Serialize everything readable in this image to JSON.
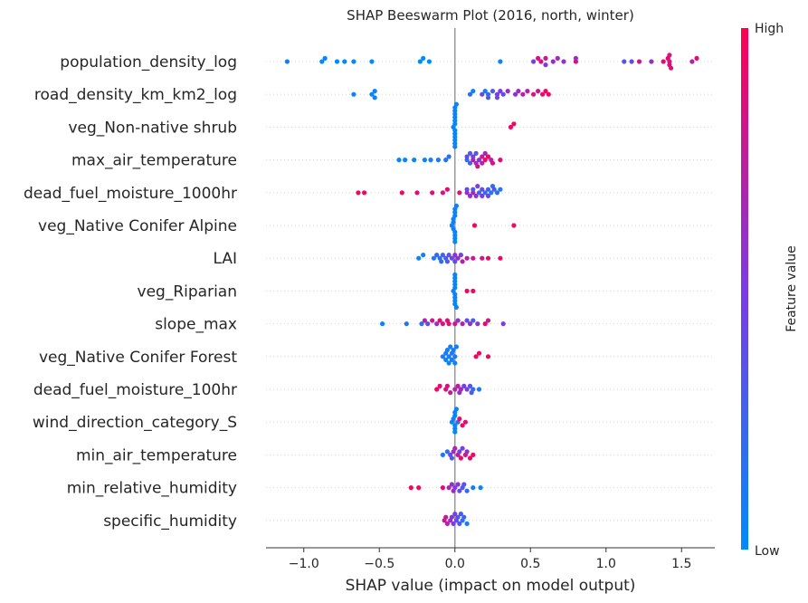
{
  "chart_data": {
    "type": "scatter",
    "subtype": "shap-beeswarm",
    "title": "SHAP Beeswarm Plot (2016, north, winter)",
    "xlabel": "SHAP value (impact on model output)",
    "xlim": [
      -1.25,
      1.72
    ],
    "x_ticks": [
      "−1.0",
      "−0.5",
      "0.0",
      "0.5",
      "1.0",
      "1.5"
    ],
    "x_tick_values": [
      -1.0,
      -0.5,
      0.0,
      0.5,
      1.0,
      1.5
    ],
    "zero_line": true,
    "colorbar": {
      "label": "Feature value",
      "high_label": "High",
      "low_label": "Low",
      "low_color": "#008bfb",
      "high_color": "#ff0052"
    },
    "features": [
      {
        "name": "population_density_log",
        "points": [
          [
            -1.11,
            0.05
          ],
          [
            -0.88,
            0.0
          ],
          [
            -0.86,
            0.05
          ],
          [
            -0.78,
            0.0
          ],
          [
            -0.73,
            0.0
          ],
          [
            -0.67,
            0.05
          ],
          [
            -0.55,
            0.0
          ],
          [
            -0.23,
            0.0
          ],
          [
            -0.21,
            0.0
          ],
          [
            -0.17,
            0.0
          ],
          [
            0.3,
            0.05
          ],
          [
            0.55,
            0.85
          ],
          [
            0.57,
            0.85
          ],
          [
            0.6,
            0.8
          ],
          [
            0.52,
            0.5
          ],
          [
            0.6,
            0.55
          ],
          [
            0.65,
            0.6
          ],
          [
            0.68,
            0.65
          ],
          [
            0.72,
            0.55
          ],
          [
            0.8,
            0.9
          ],
          [
            0.8,
            0.6
          ],
          [
            1.12,
            0.35
          ],
          [
            1.17,
            0.4
          ],
          [
            1.22,
            0.8
          ],
          [
            1.3,
            0.55
          ],
          [
            1.38,
            0.9
          ],
          [
            1.42,
            0.8
          ],
          [
            1.42,
            0.9
          ],
          [
            1.43,
            0.85
          ],
          [
            1.57,
            0.7
          ],
          [
            1.6,
            0.9
          ],
          [
            1.41,
            0.95
          ],
          [
            1.42,
            0.85
          ]
        ]
      },
      {
        "name": "road_density_km_km2_log",
        "points": [
          [
            -0.67,
            0.05
          ],
          [
            -0.55,
            0.05
          ],
          [
            -0.53,
            0.05
          ],
          [
            -0.53,
            0.05
          ],
          [
            0.1,
            0.2
          ],
          [
            0.18,
            0.45
          ],
          [
            0.2,
            0.1
          ],
          [
            0.22,
            0.2
          ],
          [
            0.28,
            0.5
          ],
          [
            0.35,
            0.6
          ],
          [
            0.45,
            0.7
          ],
          [
            0.55,
            0.8
          ],
          [
            0.58,
            0.9
          ],
          [
            0.6,
            0.95
          ],
          [
            0.12,
            0.05
          ],
          [
            0.25,
            0.3
          ],
          [
            0.3,
            0.5
          ],
          [
            0.32,
            0.4
          ],
          [
            0.4,
            0.55
          ],
          [
            0.42,
            0.65
          ],
          [
            0.48,
            0.75
          ],
          [
            0.52,
            0.85
          ],
          [
            0.62,
            0.95
          ],
          [
            0.22,
            0.3
          ],
          [
            0.28,
            0.4
          ]
        ]
      },
      {
        "name": "veg_Non-native shrub",
        "points": [
          [
            -0.01,
            0.05
          ],
          [
            0.0,
            0.05
          ],
          [
            0.0,
            0.05
          ],
          [
            0.0,
            0.05
          ],
          [
            0.0,
            0.05
          ],
          [
            0.0,
            0.05
          ],
          [
            0.0,
            0.05
          ],
          [
            0.0,
            0.05
          ],
          [
            0.0,
            0.05
          ],
          [
            0.0,
            0.05
          ],
          [
            0.0,
            0.05
          ],
          [
            0.0,
            0.05
          ],
          [
            0.0,
            0.05
          ],
          [
            0.01,
            0.05
          ],
          [
            0.37,
            0.95
          ],
          [
            0.39,
            0.95
          ]
        ]
      },
      {
        "name": "max_air_temperature",
        "points": [
          [
            -0.37,
            0.05
          ],
          [
            -0.33,
            0.05
          ],
          [
            -0.27,
            0.05
          ],
          [
            -0.2,
            0.05
          ],
          [
            -0.16,
            0.1
          ],
          [
            -0.11,
            0.1
          ],
          [
            -0.06,
            0.15
          ],
          [
            -0.04,
            0.15
          ],
          [
            0.08,
            0.2
          ],
          [
            0.1,
            0.25
          ],
          [
            0.12,
            0.75
          ],
          [
            0.15,
            0.85
          ],
          [
            0.18,
            0.8
          ],
          [
            0.2,
            0.9
          ],
          [
            0.22,
            0.95
          ],
          [
            0.25,
            0.85
          ],
          [
            0.3,
            0.9
          ],
          [
            0.14,
            0.6
          ],
          [
            0.18,
            0.7
          ],
          [
            0.08,
            0.4
          ],
          [
            0.12,
            0.5
          ],
          [
            0.16,
            0.55
          ],
          [
            0.2,
            0.65
          ],
          [
            0.24,
            0.7
          ],
          [
            0.1,
            0.3
          ],
          [
            0.14,
            0.35
          ]
        ]
      },
      {
        "name": "dead_fuel_moisture_1000hr",
        "points": [
          [
            -0.64,
            0.95
          ],
          [
            -0.6,
            0.95
          ],
          [
            -0.35,
            0.95
          ],
          [
            -0.25,
            0.9
          ],
          [
            -0.15,
            0.9
          ],
          [
            -0.08,
            0.85
          ],
          [
            -0.05,
            0.9
          ],
          [
            0.03,
            0.85
          ],
          [
            0.08,
            0.65
          ],
          [
            0.12,
            0.7
          ],
          [
            0.15,
            0.5
          ],
          [
            0.18,
            0.4
          ],
          [
            0.22,
            0.3
          ],
          [
            0.25,
            0.2
          ],
          [
            0.28,
            0.15
          ],
          [
            0.3,
            0.1
          ],
          [
            0.24,
            0.1
          ],
          [
            0.2,
            0.2
          ],
          [
            0.16,
            0.25
          ],
          [
            0.12,
            0.3
          ],
          [
            0.08,
            0.4
          ],
          [
            0.1,
            0.55
          ],
          [
            0.14,
            0.6
          ],
          [
            0.18,
            0.5
          ],
          [
            0.22,
            0.45
          ],
          [
            0.26,
            0.35
          ]
        ]
      },
      {
        "name": "veg_Native Conifer Alpine",
        "points": [
          [
            -0.02,
            0.05
          ],
          [
            -0.01,
            0.05
          ],
          [
            -0.01,
            0.05
          ],
          [
            0.0,
            0.05
          ],
          [
            0.0,
            0.05
          ],
          [
            0.0,
            0.05
          ],
          [
            0.0,
            0.05
          ],
          [
            0.0,
            0.05
          ],
          [
            0.01,
            0.05
          ],
          [
            0.0,
            0.05
          ],
          [
            -0.01,
            0.05
          ],
          [
            0.0,
            0.05
          ],
          [
            0.13,
            0.95
          ],
          [
            0.39,
            0.95
          ]
        ]
      },
      {
        "name": "LAI",
        "points": [
          [
            -0.24,
            0.05
          ],
          [
            -0.21,
            0.05
          ],
          [
            -0.14,
            0.1
          ],
          [
            -0.1,
            0.15
          ],
          [
            -0.09,
            0.2
          ],
          [
            -0.06,
            0.3
          ],
          [
            -0.04,
            0.35
          ],
          [
            -0.02,
            0.45
          ],
          [
            0.0,
            0.55
          ],
          [
            0.02,
            0.6
          ],
          [
            0.05,
            0.7
          ],
          [
            0.08,
            0.75
          ],
          [
            0.12,
            0.8
          ],
          [
            0.18,
            0.85
          ],
          [
            0.22,
            0.9
          ],
          [
            0.3,
            0.95
          ],
          [
            -0.12,
            0.2
          ],
          [
            -0.08,
            0.25
          ],
          [
            -0.05,
            0.3
          ],
          [
            0.0,
            0.4
          ],
          [
            0.04,
            0.5
          ]
        ]
      },
      {
        "name": "veg_Riparian",
        "points": [
          [
            -0.01,
            0.05
          ],
          [
            0.0,
            0.05
          ],
          [
            0.0,
            0.05
          ],
          [
            0.0,
            0.05
          ],
          [
            0.0,
            0.05
          ],
          [
            0.0,
            0.05
          ],
          [
            0.0,
            0.05
          ],
          [
            0.0,
            0.05
          ],
          [
            0.0,
            0.05
          ],
          [
            0.0,
            0.05
          ],
          [
            0.01,
            0.05
          ],
          [
            0.08,
            0.95
          ],
          [
            0.12,
            0.95
          ]
        ]
      },
      {
        "name": "slope_max",
        "points": [
          [
            -0.48,
            0.05
          ],
          [
            -0.32,
            0.1
          ],
          [
            -0.22,
            0.2
          ],
          [
            -0.18,
            0.4
          ],
          [
            -0.12,
            0.6
          ],
          [
            -0.08,
            0.85
          ],
          [
            -0.04,
            0.9
          ],
          [
            0.0,
            0.8
          ],
          [
            0.05,
            0.7
          ],
          [
            0.1,
            0.6
          ],
          [
            0.15,
            0.5
          ],
          [
            0.2,
            0.9
          ],
          [
            0.22,
            0.8
          ],
          [
            0.32,
            0.5
          ],
          [
            -0.2,
            0.7
          ],
          [
            -0.15,
            0.8
          ],
          [
            -0.1,
            0.9
          ],
          [
            -0.05,
            0.85
          ],
          [
            0.02,
            0.6
          ],
          [
            0.08,
            0.4
          ],
          [
            0.12,
            0.3
          ]
        ]
      },
      {
        "name": "veg_Native Conifer Forest",
        "points": [
          [
            -0.08,
            0.1
          ],
          [
            -0.06,
            0.1
          ],
          [
            -0.05,
            0.1
          ],
          [
            -0.04,
            0.1
          ],
          [
            -0.03,
            0.1
          ],
          [
            -0.02,
            0.1
          ],
          [
            -0.01,
            0.1
          ],
          [
            0.0,
            0.1
          ],
          [
            0.01,
            0.1
          ],
          [
            -0.06,
            0.05
          ],
          [
            -0.04,
            0.05
          ],
          [
            -0.02,
            0.05
          ],
          [
            0.0,
            0.05
          ],
          [
            0.14,
            0.95
          ],
          [
            0.16,
            0.95
          ],
          [
            0.22,
            0.95
          ]
        ]
      },
      {
        "name": "dead_fuel_moisture_100hr",
        "points": [
          [
            -0.12,
            0.95
          ],
          [
            -0.1,
            0.9
          ],
          [
            -0.06,
            0.85
          ],
          [
            -0.03,
            0.8
          ],
          [
            0.0,
            0.7
          ],
          [
            0.03,
            0.6
          ],
          [
            0.06,
            0.5
          ],
          [
            0.1,
            0.35
          ],
          [
            0.12,
            0.2
          ],
          [
            0.16,
            0.1
          ],
          [
            0.04,
            0.65
          ],
          [
            0.08,
            0.45
          ],
          [
            0.11,
            0.3
          ],
          [
            0.02,
            0.75
          ],
          [
            -0.05,
            0.85
          ]
        ]
      },
      {
        "name": "wind_direction_category_S",
        "points": [
          [
            -0.02,
            0.05
          ],
          [
            -0.01,
            0.05
          ],
          [
            0.0,
            0.05
          ],
          [
            0.0,
            0.05
          ],
          [
            0.0,
            0.05
          ],
          [
            0.0,
            0.05
          ],
          [
            0.0,
            0.05
          ],
          [
            0.01,
            0.05
          ],
          [
            0.02,
            0.2
          ],
          [
            0.03,
            0.9
          ],
          [
            0.05,
            0.95
          ],
          [
            0.07,
            0.9
          ]
        ]
      },
      {
        "name": "min_air_temperature",
        "points": [
          [
            -0.08,
            0.1
          ],
          [
            -0.05,
            0.2
          ],
          [
            -0.03,
            0.4
          ],
          [
            -0.01,
            0.6
          ],
          [
            0.0,
            0.7
          ],
          [
            0.02,
            0.8
          ],
          [
            0.04,
            0.9
          ],
          [
            0.07,
            0.85
          ],
          [
            0.1,
            0.95
          ],
          [
            0.12,
            0.95
          ],
          [
            0.05,
            0.5
          ],
          [
            0.08,
            0.6
          ],
          [
            -0.02,
            0.3
          ],
          [
            0.03,
            0.45
          ]
        ]
      },
      {
        "name": "min_relative_humidity",
        "points": [
          [
            -0.29,
            0.95
          ],
          [
            -0.24,
            0.95
          ],
          [
            -0.08,
            0.9
          ],
          [
            -0.04,
            0.7
          ],
          [
            -0.02,
            0.6
          ],
          [
            0.0,
            0.5
          ],
          [
            0.03,
            0.4
          ],
          [
            0.05,
            0.3
          ],
          [
            0.08,
            0.2
          ],
          [
            0.12,
            0.1
          ],
          [
            0.17,
            0.05
          ],
          [
            0.02,
            0.55
          ],
          [
            -0.01,
            0.65
          ],
          [
            0.06,
            0.35
          ]
        ]
      },
      {
        "name": "specific_humidity",
        "points": [
          [
            -0.07,
            0.8
          ],
          [
            -0.05,
            0.7
          ],
          [
            -0.03,
            0.6
          ],
          [
            -0.01,
            0.5
          ],
          [
            0.0,
            0.45
          ],
          [
            0.02,
            0.35
          ],
          [
            0.04,
            0.3
          ],
          [
            0.06,
            0.2
          ],
          [
            0.08,
            0.1
          ],
          [
            -0.06,
            0.75
          ],
          [
            -0.02,
            0.55
          ],
          [
            0.01,
            0.4
          ],
          [
            0.03,
            0.3
          ],
          [
            0.05,
            0.2
          ]
        ]
      }
    ]
  }
}
